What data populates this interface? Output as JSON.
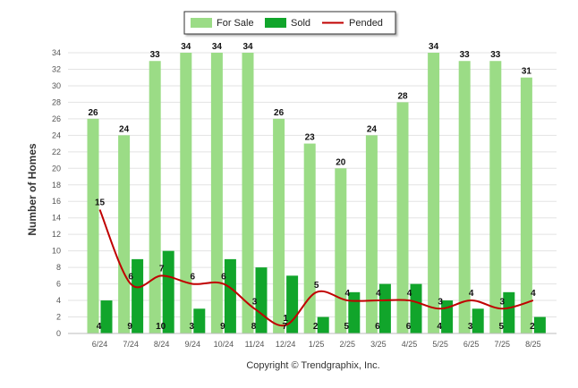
{
  "chart_data": {
    "type": "bar",
    "categories": [
      "6/24",
      "7/24",
      "8/24",
      "9/24",
      "10/24",
      "11/24",
      "12/24",
      "1/25",
      "2/25",
      "3/25",
      "4/25",
      "5/25",
      "6/25",
      "7/25",
      "8/25"
    ],
    "series": [
      {
        "name": "For Sale",
        "type": "bar",
        "color": "#9bdc86",
        "values": [
          26,
          24,
          33,
          34,
          34,
          34,
          26,
          23,
          20,
          24,
          28,
          34,
          33,
          33,
          31
        ]
      },
      {
        "name": "Sold",
        "type": "bar",
        "color": "#11a52b",
        "values": [
          4,
          9,
          10,
          3,
          9,
          8,
          7,
          2,
          5,
          6,
          6,
          4,
          3,
          5,
          2
        ]
      },
      {
        "name": "Pended",
        "type": "line",
        "color": "#c00000",
        "values": [
          15,
          6,
          7,
          6,
          6,
          3,
          1,
          5,
          4,
          4,
          4,
          3,
          4,
          3,
          4
        ]
      }
    ],
    "ylabel": "Number of Homes",
    "ylim": [
      0,
      34
    ],
    "yticks": [
      0,
      2,
      4,
      6,
      8,
      10,
      12,
      14,
      16,
      18,
      20,
      22,
      24,
      26,
      28,
      30,
      32,
      34
    ],
    "grid": true,
    "legend_position": "top-center",
    "copyright": "Copyright © Trendgraphix, Inc."
  }
}
